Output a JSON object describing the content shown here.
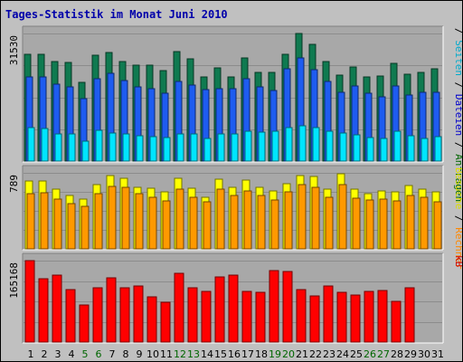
{
  "chart_data": {
    "type": "bar",
    "title": "Tages-Statistik im Monat Juni 2010",
    "x": [
      "1",
      "2",
      "3",
      "4",
      "5",
      "6",
      "7",
      "8",
      "9",
      "10",
      "11",
      "12",
      "13",
      "14",
      "15",
      "16",
      "17",
      "18",
      "19",
      "20",
      "21",
      "22",
      "23",
      "24",
      "25",
      "26",
      "27",
      "28",
      "29",
      "30",
      "31"
    ],
    "weekend_days": [
      "5",
      "6",
      "12",
      "13",
      "19",
      "20",
      "26",
      "27"
    ],
    "panels": [
      {
        "name": "top",
        "ymax_label": "31530",
        "ylim": [
          0,
          31530
        ],
        "right_labels": [
          "Anfragen",
          "/",
          "Dateien",
          "/",
          "Seiten",
          "/"
        ],
        "right_label_colors": [
          "#006600",
          "#000000",
          "#0000cc",
          "#000000",
          "#00aacc",
          "#000000"
        ],
        "series": [
          {
            "name": "Anfragen",
            "color": "#0f7a50",
            "values": [
              26400,
              26400,
              24700,
              24300,
              19400,
              26100,
              26900,
              24600,
              23600,
              23600,
              22300,
              27100,
              25200,
              20700,
              23000,
              20800,
              25600,
              21900,
              22000,
              26400,
              31530,
              28800,
              24600,
              21200,
              23200,
              20900,
              21100,
              24200,
              21500,
              22000,
              22700
            ]
          },
          {
            "name": "Dateien",
            "color": "#1e5cf0",
            "values": [
              20700,
              20800,
              19000,
              18400,
              15400,
              20400,
              21600,
              19800,
              18400,
              18000,
              16700,
              19700,
              18800,
              17700,
              17800,
              17800,
              20300,
              18400,
              17400,
              22700,
              25400,
              22600,
              19600,
              16900,
              18500,
              16800,
              15800,
              18600,
              16400,
              17000,
              17000
            ]
          },
          {
            "name": "Seiten",
            "color": "#00e5ff",
            "values": [
              8200,
              8100,
              6700,
              6700,
              5000,
              7700,
              7000,
              6700,
              6300,
              6100,
              5900,
              6600,
              6600,
              5600,
              6800,
              6600,
              7300,
              7200,
              7300,
              8300,
              8800,
              8300,
              7300,
              7000,
              6500,
              5900,
              5600,
              7400,
              6200,
              5600,
              6000
            ]
          }
        ]
      },
      {
        "name": "middle",
        "ymax_label": "789",
        "ylim": [
          0,
          789
        ],
        "right_labels": [
          "Rechner",
          "/",
          "Besuche"
        ],
        "right_label_colors": [
          "#ff8800",
          "#000000",
          "#dddd00"
        ],
        "series": [
          {
            "name": "Besuche",
            "color": "#ffff00",
            "values": [
              700,
              700,
              620,
              550,
              520,
              670,
              760,
              730,
              640,
              630,
              590,
              730,
              630,
              540,
              720,
              640,
              710,
              640,
              600,
              680,
              760,
              750,
              620,
              780,
              620,
              570,
              600,
              590,
              660,
              620,
              590
            ]
          },
          {
            "name": "Rechner",
            "color": "#ff9900",
            "values": [
              570,
              580,
              520,
              470,
              440,
              570,
              650,
              640,
              570,
              540,
              500,
              620,
              540,
              490,
              620,
              550,
              600,
              550,
              510,
              590,
              670,
              640,
              540,
              670,
              530,
              510,
              520,
              500,
              550,
              540,
              490
            ]
          }
        ]
      },
      {
        "name": "bottom",
        "ymax_label": "165168",
        "ylim": [
          0,
          165168
        ],
        "right_labels": [
          "kB"
        ],
        "right_label_colors": [
          "#cc0000"
        ],
        "series": [
          {
            "name": "kB",
            "color": "#ff0000",
            "values": [
              165168,
              128000,
              135000,
              106000,
              76000,
              111000,
              131000,
              111000,
              113000,
              92000,
              81000,
              140000,
              110000,
              103000,
              132000,
              135000,
              103000,
              101000,
              145000,
              144000,
              107000,
              93000,
              113000,
              101000,
              95000,
              102000,
              104000,
              83000,
              111000,
              0,
              0
            ]
          }
        ]
      }
    ],
    "colors": {
      "title": "#0000aa",
      "weekend_label": "#006600",
      "weekday_label": "#000000",
      "panel_bg": "#a8a8a8",
      "bg": "#c0c0c0"
    }
  }
}
